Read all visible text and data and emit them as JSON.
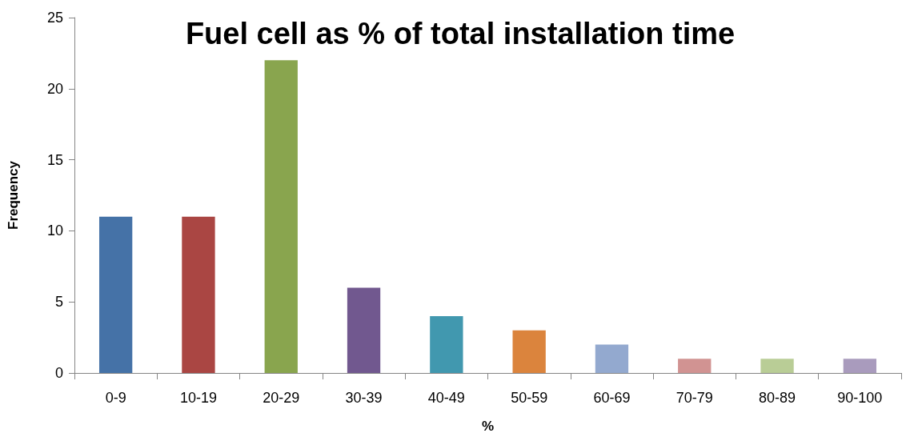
{
  "chart_data": {
    "type": "bar",
    "title": "Fuel cell as % of total installation time",
    "xlabel": "%",
    "ylabel": "Frequency",
    "categories": [
      "0-9",
      "10-19",
      "20-29",
      "30-39",
      "40-49",
      "50-59",
      "60-69",
      "70-79",
      "80-89",
      "90-100"
    ],
    "values": [
      11,
      11,
      22,
      6,
      4,
      3,
      2,
      1,
      1,
      1
    ],
    "colors": [
      "#4572a7",
      "#aa4643",
      "#89a54e",
      "#71588f",
      "#4198af",
      "#db843d",
      "#93a9cf",
      "#d19392",
      "#b9cd96",
      "#a99bbd"
    ],
    "ylim": [
      0,
      25
    ],
    "yticks": [
      0,
      5,
      10,
      15,
      20,
      25
    ]
  }
}
